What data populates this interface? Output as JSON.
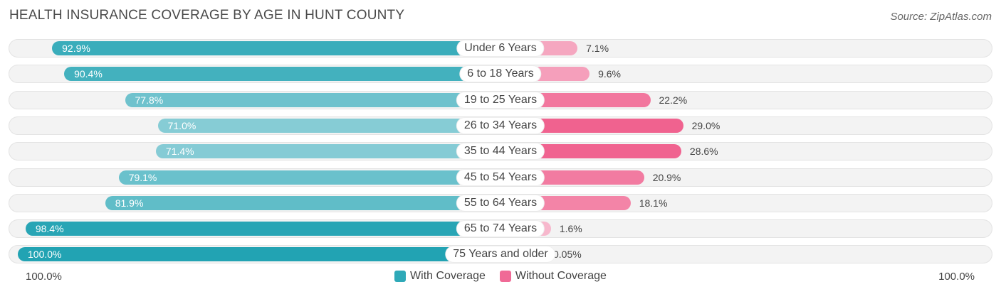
{
  "title": "HEALTH INSURANCE COVERAGE BY AGE IN HUNT COUNTY",
  "source": "Source: ZipAtlas.com",
  "axis": {
    "left_label": "100.0%",
    "right_label": "100.0%"
  },
  "legend": [
    {
      "label": "With Coverage",
      "color": "#2ea9b8"
    },
    {
      "label": "Without Coverage",
      "color": "#f06a96"
    }
  ],
  "chart_data": {
    "type": "bar",
    "orientation": "horizontal-diverging",
    "title": "HEALTH INSURANCE COVERAGE BY AGE IN HUNT COUNTY",
    "categories": [
      "Under 6 Years",
      "6 to 18 Years",
      "19 to 25 Years",
      "26 to 34 Years",
      "35 to 44 Years",
      "45 to 54 Years",
      "55 to 64 Years",
      "65 to 74 Years",
      "75 Years and older"
    ],
    "series": [
      {
        "name": "With Coverage",
        "values": [
          92.9,
          90.4,
          77.8,
          71.0,
          71.4,
          79.1,
          81.9,
          98.4,
          100.0
        ],
        "labels": [
          "92.9%",
          "90.4%",
          "77.8%",
          "71.0%",
          "71.4%",
          "79.1%",
          "81.9%",
          "98.4%",
          "100.0%"
        ]
      },
      {
        "name": "Without Coverage",
        "values": [
          7.1,
          9.6,
          22.2,
          29.0,
          28.6,
          20.9,
          18.1,
          1.6,
          0.05
        ],
        "labels": [
          "7.1%",
          "9.6%",
          "22.2%",
          "29.0%",
          "28.6%",
          "20.9%",
          "18.1%",
          "1.6%",
          "0.05%"
        ]
      }
    ],
    "xlim": [
      0,
      100
    ],
    "legend_position": "bottom-center"
  }
}
